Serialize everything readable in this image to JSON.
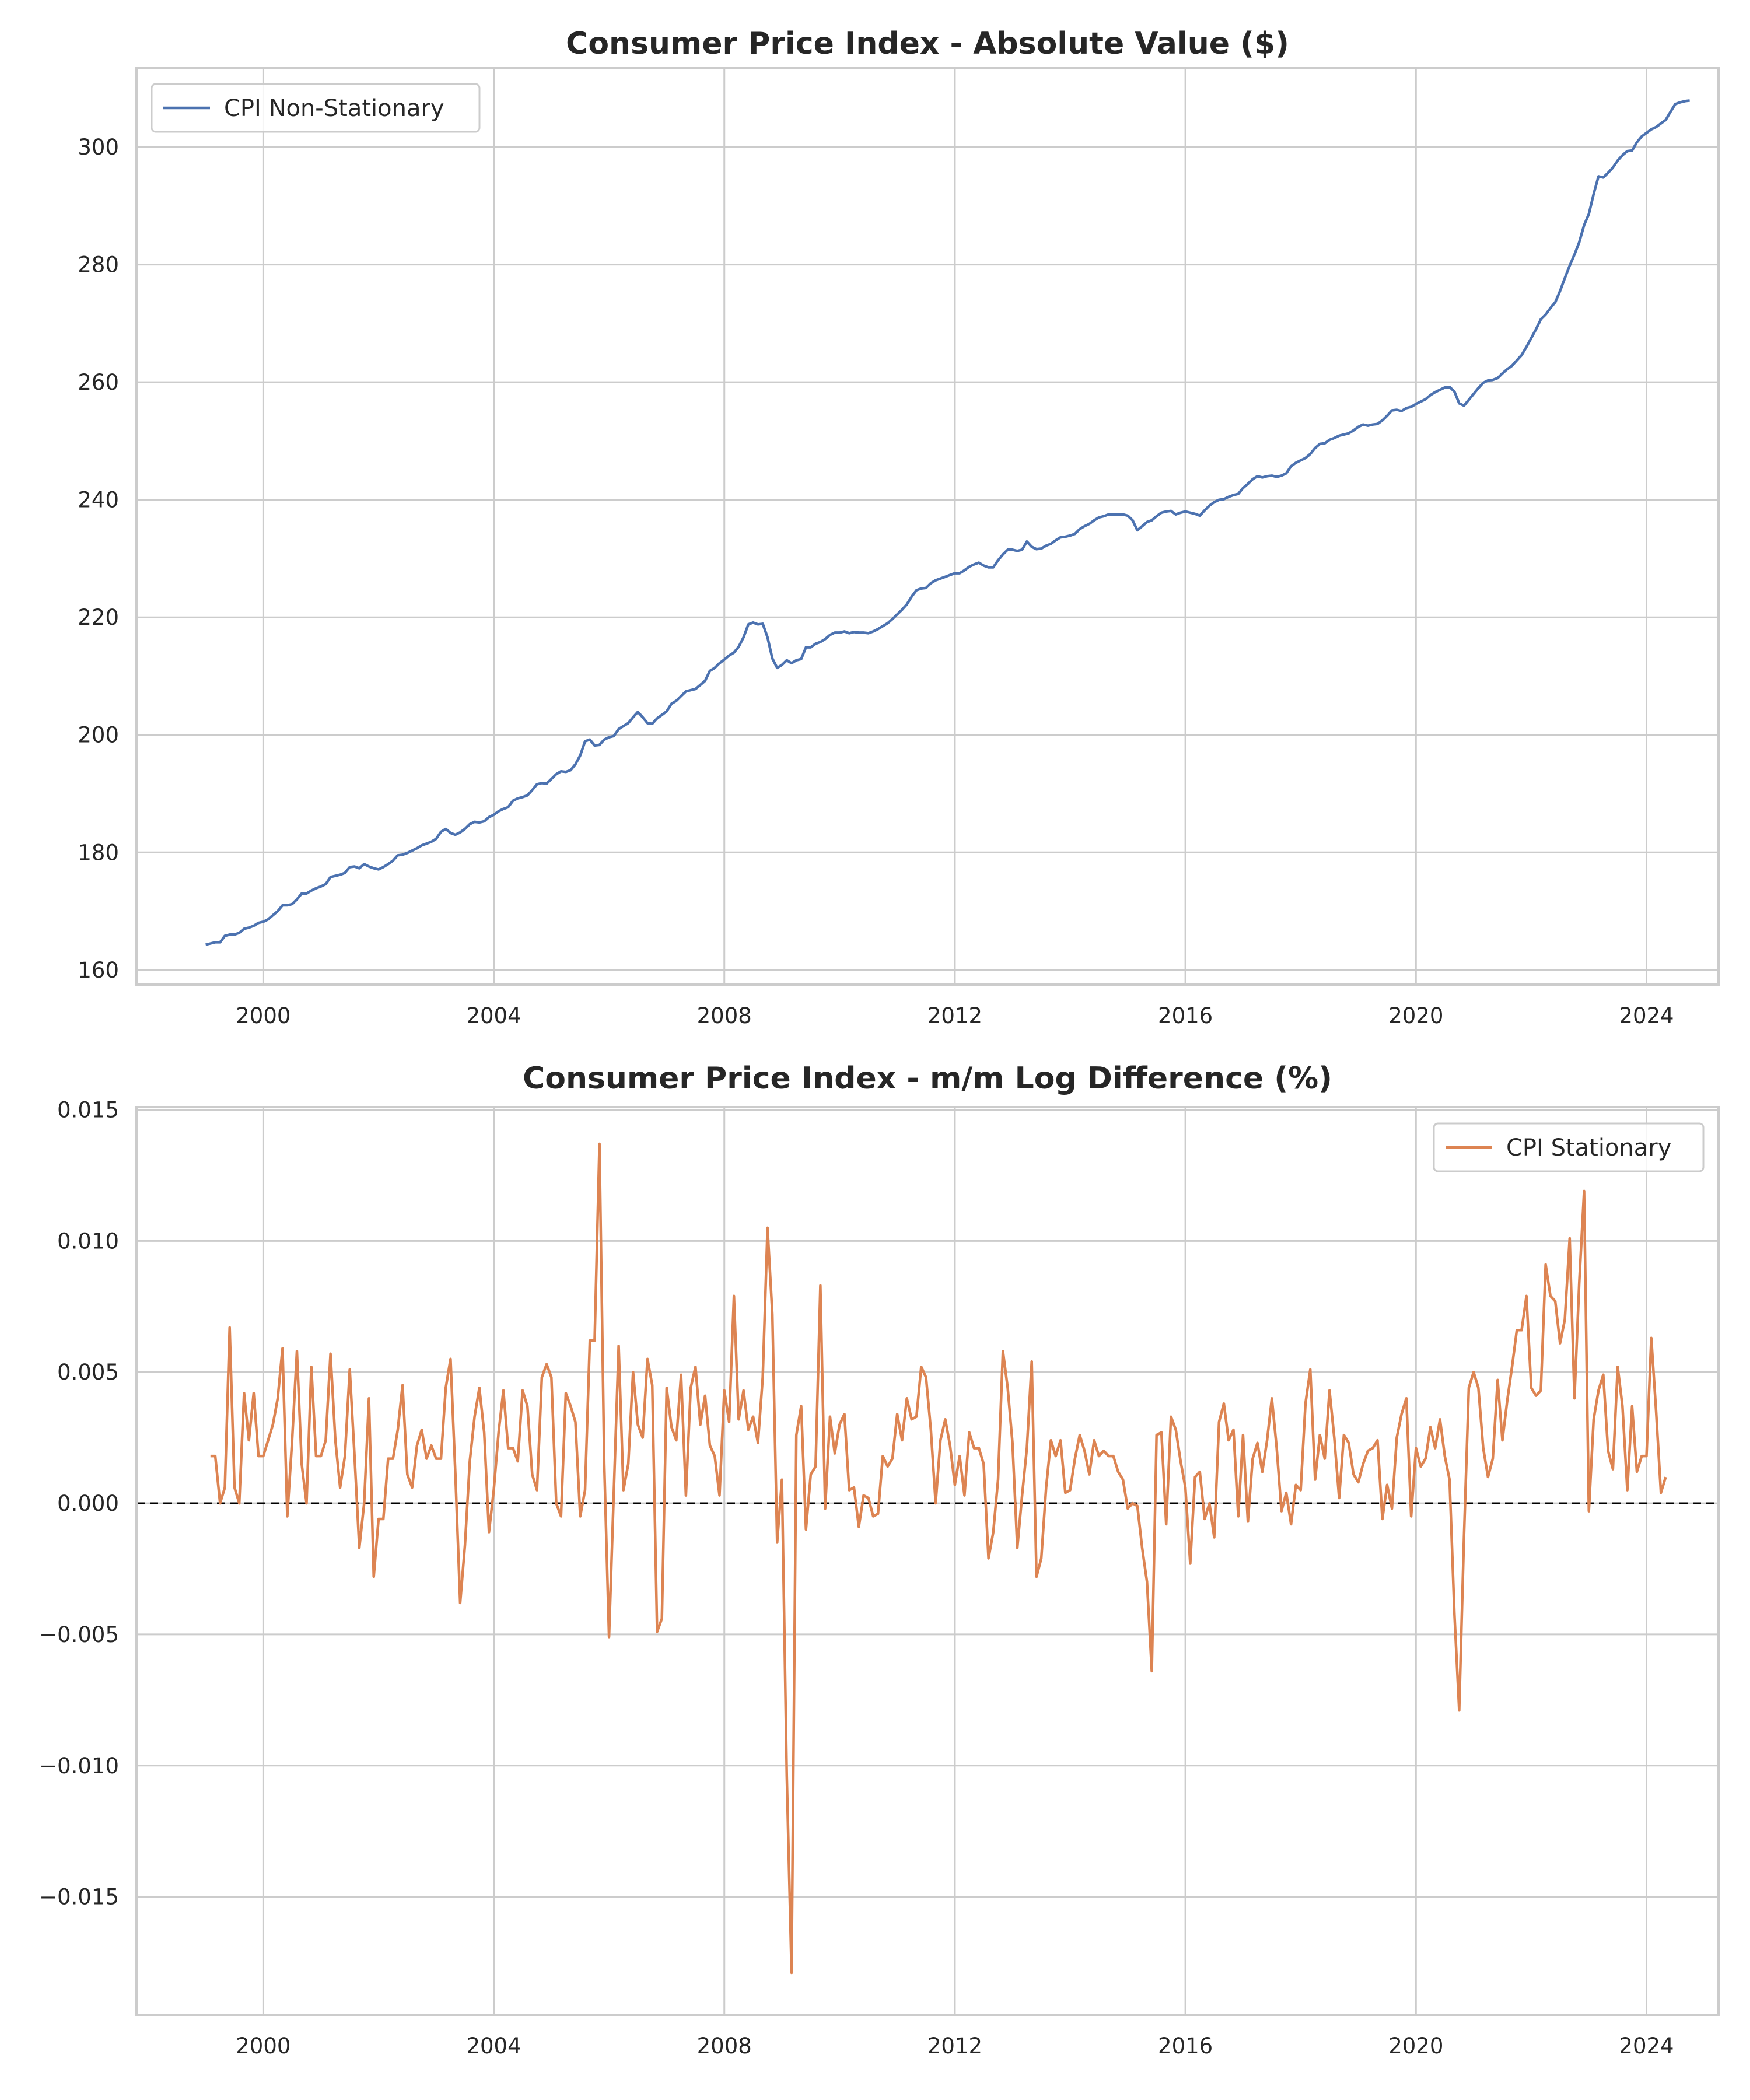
{
  "chart_data": [
    {
      "type": "line",
      "title": "Consumer Price Index - Absolute Value ($)",
      "xlabel": "",
      "ylabel": "",
      "xlim": [
        1997.8,
        2025.25
      ],
      "ylim": [
        157.5,
        313.5
      ],
      "x_ticks": [
        "2000",
        "2004",
        "2008",
        "2012",
        "2016",
        "2020",
        "2024"
      ],
      "y_ticks": [
        "160",
        "180",
        "200",
        "220",
        "240",
        "260",
        "280",
        "300"
      ],
      "grid": true,
      "legend_position": "top-left",
      "series": [
        {
          "name": "CPI Non-Stationary",
          "color": "#4c72b0",
          "start": "1999-01",
          "frequency": "monthly",
          "values": [
            164.3,
            164.5,
            164.7,
            164.7,
            165.8,
            166.0,
            166.0,
            166.3,
            167.0,
            167.2,
            167.5,
            168.0,
            168.2,
            168.6,
            169.3,
            170.0,
            171.0,
            171.0,
            171.2,
            172.0,
            173.0,
            173.0,
            173.5,
            173.9,
            174.2,
            174.6,
            175.8,
            176.0,
            176.2,
            176.5,
            177.5,
            177.6,
            177.3,
            178.0,
            177.6,
            177.3,
            177.1,
            177.5,
            178.0,
            178.6,
            179.5,
            179.6,
            179.9,
            180.3,
            180.7,
            181.2,
            181.5,
            181.8,
            182.3,
            183.5,
            184.0,
            183.3,
            183.0,
            183.4,
            184.0,
            184.8,
            185.2,
            185.1,
            185.3,
            186.0,
            186.4,
            187.0,
            187.4,
            187.7,
            188.8,
            189.2,
            189.4,
            189.7,
            190.6,
            191.6,
            191.8,
            191.7,
            192.5,
            193.3,
            193.8,
            193.7,
            194.0,
            195.0,
            196.5,
            198.9,
            199.2,
            198.2,
            198.3,
            199.2,
            199.6,
            199.8,
            201.0,
            201.5,
            202.0,
            203.0,
            203.9,
            203.0,
            202.0,
            201.9,
            202.8,
            203.4,
            204.0,
            205.3,
            205.8,
            206.6,
            207.4,
            207.6,
            207.8,
            208.5,
            209.2,
            210.9,
            211.4,
            212.2,
            212.8,
            213.5,
            214.0,
            215.0,
            216.6,
            218.8,
            219.1,
            218.8,
            218.9,
            216.6,
            213.0,
            211.4,
            211.9,
            212.7,
            212.2,
            212.7,
            212.9,
            214.9,
            214.9,
            215.5,
            215.8,
            216.3,
            217.0,
            217.4,
            217.4,
            217.6,
            217.3,
            217.5,
            217.4,
            217.4,
            217.3,
            217.6,
            218.0,
            218.5,
            219.0,
            219.7,
            220.5,
            221.3,
            222.2,
            223.5,
            224.6,
            224.9,
            225.0,
            225.8,
            226.3,
            226.6,
            226.9,
            227.2,
            227.5,
            227.5,
            228.0,
            228.6,
            229.0,
            229.3,
            228.8,
            228.5,
            228.5,
            229.7,
            230.7,
            231.5,
            231.5,
            231.3,
            231.5,
            232.9,
            232.0,
            231.6,
            231.7,
            232.2,
            232.5,
            233.1,
            233.6,
            233.7,
            233.9,
            234.2,
            235.0,
            235.5,
            235.9,
            236.5,
            237.0,
            237.2,
            237.5,
            237.5,
            237.5,
            237.5,
            237.3,
            236.5,
            234.8,
            235.5,
            236.2,
            236.5,
            237.2,
            237.8,
            238.0,
            238.1,
            237.5,
            237.8,
            238.0,
            237.8,
            237.6,
            237.3,
            238.2,
            239.0,
            239.6,
            240.0,
            240.1,
            240.5,
            240.8,
            241.0,
            242.0,
            242.7,
            243.5,
            244.0,
            243.8,
            244.0,
            244.1,
            243.9,
            244.1,
            244.5,
            245.7,
            246.3,
            246.7,
            247.1,
            247.8,
            248.8,
            249.5,
            249.6,
            250.2,
            250.5,
            250.9,
            251.1,
            251.3,
            251.8,
            252.4,
            252.8,
            252.6,
            252.8,
            252.9,
            253.5,
            254.3,
            255.2,
            255.3,
            255.1,
            255.6,
            255.8,
            256.3,
            256.7,
            257.1,
            257.8,
            258.3,
            258.7,
            259.1,
            259.2,
            258.4,
            256.4,
            256.0,
            257.0,
            258.0,
            259.0,
            259.9,
            260.3,
            260.4,
            260.7,
            261.5,
            262.2,
            262.8,
            263.7,
            264.6,
            266.0,
            267.5,
            269.0,
            270.7,
            271.5,
            272.6,
            273.6,
            275.5,
            277.7,
            279.8,
            281.7,
            283.8,
            286.7,
            288.6,
            292.0,
            295.0,
            294.8,
            295.6,
            296.5,
            297.7,
            298.6,
            299.3,
            299.4,
            300.8,
            301.8,
            302.4,
            303.0,
            303.4,
            304.0,
            304.6,
            306.0,
            307.3,
            307.6,
            307.8,
            307.9
          ]
        }
      ]
    },
    {
      "type": "line",
      "title": "Consumer Price Index - m/m Log Difference (%)",
      "xlabel": "",
      "ylabel": "",
      "xlim": [
        1997.8,
        2025.25
      ],
      "ylim": [
        -0.0195,
        0.0151
      ],
      "x_ticks": [
        "2000",
        "2004",
        "2008",
        "2012",
        "2016",
        "2020",
        "2024"
      ],
      "y_ticks": [
        "0.015",
        "0.010",
        "0.005",
        "0.000",
        "−0.005",
        "−0.010",
        "−0.015"
      ],
      "grid": true,
      "reference_line": {
        "y": 0.0,
        "style": "dashed",
        "color": "#000000"
      },
      "legend_position": "top-right",
      "series": [
        {
          "name": "CPI Stationary",
          "color": "#dd8452",
          "start": "1999-02",
          "frequency": "monthly",
          "values": [
            0.0018,
            0.0018,
            0.0,
            0.0006,
            0.0067,
            0.0006,
            0.0,
            0.0042,
            0.0024,
            0.0042,
            0.0018,
            0.0018,
            0.0024,
            0.003,
            0.004,
            0.0059,
            -0.0005,
            0.0024,
            0.0058,
            0.0015,
            0.0,
            0.0052,
            0.0018,
            0.0018,
            0.0024,
            0.0057,
            0.0024,
            0.0006,
            0.0018,
            0.0051,
            0.0018,
            -0.0017,
            0.0,
            0.004,
            -0.0028,
            -0.0006,
            -0.0006,
            0.0017,
            0.0017,
            0.0028,
            0.0045,
            0.0011,
            0.0006,
            0.0022,
            0.0028,
            0.0017,
            0.0022,
            0.0017,
            0.0017,
            0.0044,
            0.0055,
            0.0011,
            -0.0038,
            -0.0016,
            0.0016,
            0.0033,
            0.0044,
            0.0027,
            -0.0011,
            0.0005,
            0.0027,
            0.0043,
            0.0021,
            0.0021,
            0.0016,
            0.0043,
            0.0037,
            0.0011,
            0.0005,
            0.0048,
            0.0053,
            0.0048,
            0.0,
            -0.0005,
            0.0042,
            0.0037,
            0.0031,
            -0.0005,
            0.0005,
            0.0062,
            0.0062,
            0.0137,
            0.0015,
            -0.0051,
            0.0005,
            0.006,
            0.0005,
            0.0015,
            0.005,
            0.003,
            0.0025,
            0.0055,
            0.0045,
            -0.0049,
            -0.0044,
            0.0044,
            0.0029,
            0.0024,
            0.0049,
            0.0003,
            0.0044,
            0.0052,
            0.003,
            0.0041,
            0.0022,
            0.0018,
            0.0003,
            0.0043,
            0.0031,
            0.0079,
            0.0032,
            0.0043,
            0.0028,
            0.0033,
            0.0023,
            0.0048,
            0.0105,
            0.0072,
            -0.0015,
            0.0009,
            -0.0104,
            -0.0179,
            0.0026,
            0.0037,
            -0.001,
            0.0011,
            0.0014,
            0.0083,
            -0.0002,
            0.0033,
            0.0019,
            0.003,
            0.0034,
            0.0005,
            0.0006,
            -0.0009,
            0.0003,
            0.0002,
            -0.0005,
            -0.0004,
            0.0018,
            0.0014,
            0.0017,
            0.0034,
            0.0024,
            0.004,
            0.0032,
            0.0033,
            0.0052,
            0.0048,
            0.0028,
            0.0,
            0.0024,
            0.0032,
            0.0022,
            0.0007,
            0.0018,
            0.0003,
            0.0027,
            0.0021,
            0.0021,
            0.0015,
            -0.0021,
            -0.0011,
            0.0009,
            0.0058,
            0.0044,
            0.0023,
            -0.0017,
            0.0003,
            0.0021,
            0.0054,
            -0.0028,
            -0.0021,
            0.0006,
            0.0024,
            0.0018,
            0.0024,
            0.0004,
            0.0005,
            0.0017,
            0.0026,
            0.002,
            0.0011,
            0.0024,
            0.0018,
            0.002,
            0.0018,
            0.0018,
            0.0012,
            0.0009,
            -0.0002,
            0.0,
            -0.0001,
            -0.0017,
            -0.003,
            -0.0064,
            0.0026,
            0.0027,
            -0.0008,
            0.0033,
            0.0028,
            0.0016,
            0.0006,
            -0.0023,
            0.001,
            0.0012,
            -0.0006,
            0.0,
            -0.0013,
            0.0031,
            0.0038,
            0.0024,
            0.0028,
            -0.0005,
            0.0026,
            -0.0007,
            0.0017,
            0.0023,
            0.0012,
            0.0024,
            0.004,
            0.0021,
            -0.0003,
            0.0004,
            -0.0008,
            0.0007,
            0.0005,
            0.0038,
            0.0051,
            0.0009,
            0.0026,
            0.0017,
            0.0043,
            0.0025,
            0.0002,
            0.0026,
            0.0023,
            0.0011,
            0.0008,
            0.0015,
            0.002,
            0.0021,
            0.0024,
            -0.0006,
            0.0007,
            -0.0002,
            0.0025,
            0.0034,
            0.004,
            -0.0005,
            0.0021,
            0.0014,
            0.0017,
            0.0029,
            0.0021,
            0.0032,
            0.0018,
            0.0009,
            -0.0042,
            -0.0079,
            -0.0013,
            0.0044,
            0.005,
            0.0044,
            0.0021,
            0.001,
            0.0017,
            0.0047,
            0.0024,
            0.0039,
            0.0052,
            0.0066,
            0.0066,
            0.0079,
            0.0044,
            0.0041,
            0.0043,
            0.0091,
            0.0079,
            0.0077,
            0.0061,
            0.007,
            0.0101,
            0.004,
            0.0084,
            0.0119,
            -0.0003,
            0.0032,
            0.0043,
            0.0049,
            0.002,
            0.0013,
            0.0052,
            0.0037,
            0.0005,
            0.0037,
            0.0012,
            0.0018,
            0.0018,
            0.0063,
            0.0035,
            0.0004,
            0.001
          ]
        }
      ]
    }
  ]
}
